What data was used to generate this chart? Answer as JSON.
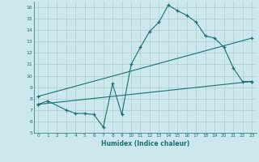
{
  "xlabel": "Humidex (Indice chaleur)",
  "xlim": [
    -0.5,
    23.5
  ],
  "ylim": [
    5,
    16.5
  ],
  "xticks": [
    0,
    1,
    2,
    3,
    4,
    5,
    6,
    7,
    8,
    9,
    10,
    11,
    12,
    13,
    14,
    15,
    16,
    17,
    18,
    19,
    20,
    21,
    22,
    23
  ],
  "yticks": [
    5,
    6,
    7,
    8,
    9,
    10,
    11,
    12,
    13,
    14,
    15,
    16
  ],
  "bg_color": "#cce8ee",
  "grid_color": "#aacccc",
  "line_color": "#1a7070",
  "line1_x": [
    0,
    1,
    3,
    4,
    5,
    6,
    7,
    8,
    9,
    10,
    11,
    12,
    13,
    14,
    15,
    16,
    17,
    18,
    19,
    20,
    21,
    22,
    23
  ],
  "line1_y": [
    7.5,
    7.8,
    7.0,
    6.7,
    6.7,
    6.6,
    5.5,
    9.3,
    6.6,
    11.0,
    12.5,
    13.9,
    14.7,
    16.2,
    15.7,
    15.3,
    14.7,
    13.5,
    13.3,
    12.5,
    10.7,
    9.5,
    9.5
  ],
  "line2_x": [
    0,
    23
  ],
  "line2_y": [
    7.5,
    9.5
  ],
  "line3_x": [
    0,
    23
  ],
  "line3_y": [
    8.2,
    13.3
  ]
}
